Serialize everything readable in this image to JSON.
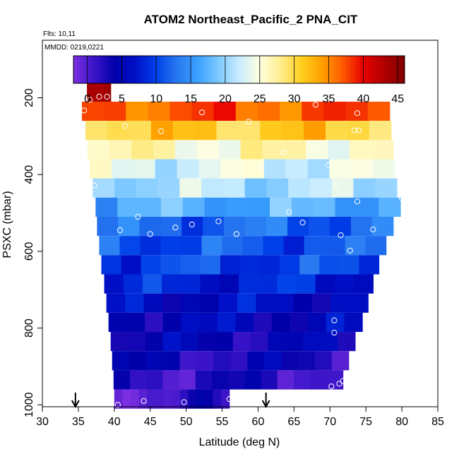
{
  "chart_data": {
    "type": "heatmap",
    "title": "ATOM2 Northeast_Pacific_2 PNA_CIT",
    "flights_note": "Flts: 10,11",
    "date_note": "MMDD: 0219,0221",
    "xlabel": "Latitude (deg N)",
    "ylabel": "PSXC (mbar)",
    "xlim": [
      30,
      85
    ],
    "ylim": [
      1005,
      50
    ],
    "x_ticks": [
      30,
      35,
      40,
      45,
      50,
      55,
      60,
      65,
      70,
      75,
      80,
      85
    ],
    "y_ticks": [
      200,
      400,
      600,
      800,
      1000
    ],
    "colorbar": {
      "range": [
        -2,
        46
      ],
      "ticks": [
        0,
        5,
        10,
        15,
        20,
        25,
        30,
        35,
        40,
        45
      ],
      "colors": [
        "#7b2fe0",
        "#3a14c8",
        "#0000a8",
        "#0010c8",
        "#0040e8",
        "#2878f0",
        "#3aa0ff",
        "#7cc8ff",
        "#c8ecff",
        "#ffffe0",
        "#ffee90",
        "#ffd020",
        "#ffa000",
        "#ff5a00",
        "#e80000",
        "#b00000",
        "#800000"
      ]
    },
    "bands": [
      {
        "p": 185,
        "lat_min": 36.2,
        "lat_max": 39.5,
        "value": 43
      },
      {
        "p": 235,
        "lat_min": 35.5,
        "lat_max": 78.3,
        "value": 37
      },
      {
        "p": 285,
        "lat_min": 36.0,
        "lat_max": 78.5,
        "value": 31
      },
      {
        "p": 335,
        "lat_min": 36.3,
        "lat_max": 78.8,
        "value": 26
      },
      {
        "p": 385,
        "lat_min": 36.6,
        "lat_max": 79.0,
        "value": 23
      },
      {
        "p": 435,
        "lat_min": 37.0,
        "lat_max": 79.3,
        "value": 21
      },
      {
        "p": 485,
        "lat_min": 37.4,
        "lat_max": 79.8,
        "value": 17
      },
      {
        "p": 535,
        "lat_min": 37.6,
        "lat_max": 78.8,
        "value": 12
      },
      {
        "p": 585,
        "lat_min": 37.9,
        "lat_max": 77.8,
        "value": 11
      },
      {
        "p": 635,
        "lat_min": 38.2,
        "lat_max": 76.8,
        "value": 10
      },
      {
        "p": 685,
        "lat_min": 38.6,
        "lat_max": 76.0,
        "value": 8
      },
      {
        "p": 735,
        "lat_min": 38.9,
        "lat_max": 75.3,
        "value": 6
      },
      {
        "p": 785,
        "lat_min": 39.2,
        "lat_max": 74.5,
        "value": 5
      },
      {
        "p": 835,
        "lat_min": 39.5,
        "lat_max": 73.5,
        "value": 4
      },
      {
        "p": 885,
        "lat_min": 39.7,
        "lat_max": 72.6,
        "value": 3
      },
      {
        "p": 935,
        "lat_min": 39.9,
        "lat_max": 71.8,
        "value": 2
      },
      {
        "p": 985,
        "lat_min": 40.0,
        "lat_max": 56.0,
        "value": 1
      }
    ],
    "points": [
      {
        "lat": 35.8,
        "p": 233
      },
      {
        "lat": 36.6,
        "p": 205
      },
      {
        "lat": 37.9,
        "p": 197
      },
      {
        "lat": 39.0,
        "p": 197
      },
      {
        "lat": 52.2,
        "p": 238
      },
      {
        "lat": 68.0,
        "p": 218
      },
      {
        "lat": 73.8,
        "p": 240
      },
      {
        "lat": 41.5,
        "p": 273
      },
      {
        "lat": 46.5,
        "p": 287
      },
      {
        "lat": 58.7,
        "p": 262
      },
      {
        "lat": 73.4,
        "p": 285
      },
      {
        "lat": 74.0,
        "p": 285
      },
      {
        "lat": 63.5,
        "p": 343
      },
      {
        "lat": 60.4,
        "p": 380
      },
      {
        "lat": 69.8,
        "p": 375
      },
      {
        "lat": 37.2,
        "p": 428
      },
      {
        "lat": 71.0,
        "p": 430
      },
      {
        "lat": 73.8,
        "p": 470
      },
      {
        "lat": 80.0,
        "p": 462
      },
      {
        "lat": 43.3,
        "p": 510
      },
      {
        "lat": 64.3,
        "p": 498
      },
      {
        "lat": 40.8,
        "p": 545
      },
      {
        "lat": 45.0,
        "p": 555
      },
      {
        "lat": 48.5,
        "p": 538
      },
      {
        "lat": 50.8,
        "p": 530
      },
      {
        "lat": 54.5,
        "p": 522
      },
      {
        "lat": 57.0,
        "p": 555
      },
      {
        "lat": 66.2,
        "p": 525
      },
      {
        "lat": 71.5,
        "p": 558
      },
      {
        "lat": 76.0,
        "p": 543
      },
      {
        "lat": 72.8,
        "p": 598
      },
      {
        "lat": 70.6,
        "p": 780
      },
      {
        "lat": 70.6,
        "p": 812
      },
      {
        "lat": 71.3,
        "p": 945
      },
      {
        "lat": 71.8,
        "p": 938
      },
      {
        "lat": 70.2,
        "p": 952
      },
      {
        "lat": 40.5,
        "p": 1000
      },
      {
        "lat": 44.1,
        "p": 990
      },
      {
        "lat": 49.7,
        "p": 993
      },
      {
        "lat": 56.0,
        "p": 985
      }
    ],
    "arrows": [
      34.6,
      61.1
    ]
  }
}
